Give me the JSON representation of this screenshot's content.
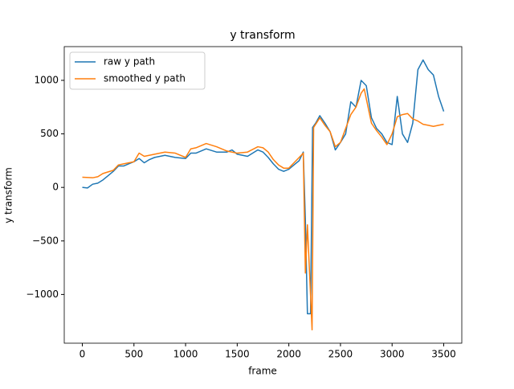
{
  "chart_data": {
    "type": "line",
    "title": "y transform",
    "x_label": "frame",
    "y_label": "y transform",
    "xlim": [
      -175,
      3675
    ],
    "ylim": [
      -1455,
      1315
    ],
    "xticks": [
      0,
      500,
      1000,
      1500,
      2000,
      2500,
      3000,
      3500
    ],
    "yticks": [
      {
        "value": -1000,
        "label": "−1000"
      },
      {
        "value": -500,
        "label": "−500"
      },
      0,
      500,
      1000
    ],
    "legend": "upper left",
    "series": [
      {
        "name": "raw y path",
        "color": "#1f77b4",
        "x": [
          0,
          50,
          100,
          150,
          200,
          250,
          300,
          350,
          400,
          450,
          500,
          550,
          600,
          650,
          700,
          800,
          900,
          1000,
          1050,
          1100,
          1200,
          1300,
          1400,
          1450,
          1500,
          1600,
          1700,
          1750,
          1800,
          1850,
          1900,
          1950,
          2000,
          2050,
          2100,
          2140,
          2160,
          2180,
          2210,
          2230,
          2260,
          2300,
          2350,
          2400,
          2450,
          2500,
          2550,
          2600,
          2650,
          2700,
          2750,
          2800,
          2850,
          2900,
          2950,
          3000,
          3050,
          3100,
          3150,
          3200,
          3250,
          3300,
          3350,
          3400,
          3450,
          3500
        ],
        "values": [
          0,
          -5,
          30,
          40,
          70,
          110,
          150,
          200,
          200,
          220,
          240,
          270,
          230,
          260,
          280,
          300,
          280,
          270,
          320,
          320,
          360,
          330,
          330,
          350,
          310,
          290,
          350,
          330,
          280,
          220,
          170,
          150,
          170,
          210,
          250,
          330,
          -300,
          -1180,
          -1180,
          560,
          600,
          670,
          600,
          520,
          350,
          420,
          500,
          800,
          750,
          1000,
          950,
          650,
          550,
          500,
          420,
          400,
          850,
          500,
          420,
          600,
          1100,
          1190,
          1100,
          1050,
          850,
          710
        ]
      },
      {
        "name": "smoothed y path",
        "color": "#ff7f0e",
        "x": [
          0,
          100,
          150,
          200,
          300,
          350,
          400,
          500,
          550,
          600,
          700,
          800,
          900,
          1000,
          1050,
          1100,
          1200,
          1300,
          1400,
          1450,
          1500,
          1600,
          1700,
          1750,
          1800,
          1850,
          1900,
          1950,
          2000,
          2050,
          2100,
          2140,
          2160,
          2180,
          2210,
          2225,
          2240,
          2300,
          2350,
          2400,
          2450,
          2500,
          2550,
          2600,
          2650,
          2700,
          2730,
          2800,
          2850,
          2900,
          2950,
          3000,
          3050,
          3100,
          3150,
          3200,
          3250,
          3300,
          3350,
          3400,
          3450,
          3500
        ],
        "values": [
          95,
          90,
          100,
          130,
          160,
          210,
          220,
          240,
          320,
          290,
          310,
          330,
          320,
          280,
          360,
          370,
          410,
          380,
          340,
          330,
          320,
          330,
          380,
          370,
          330,
          260,
          210,
          180,
          180,
          230,
          280,
          320,
          -800,
          -350,
          -1000,
          -1330,
          560,
          650,
          580,
          520,
          380,
          420,
          550,
          680,
          750,
          880,
          920,
          600,
          530,
          470,
          400,
          500,
          660,
          680,
          690,
          640,
          620,
          590,
          580,
          570,
          580,
          590
        ]
      }
    ]
  }
}
